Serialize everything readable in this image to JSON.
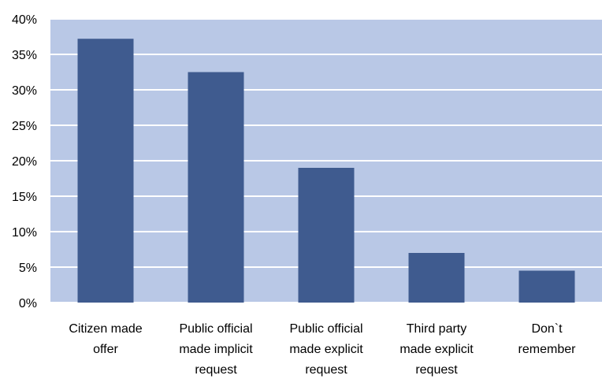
{
  "chart_data": {
    "type": "bar",
    "categories": [
      [
        "Citizen made",
        "offer"
      ],
      [
        "Public official",
        "made implicit",
        "request"
      ],
      [
        "Public official",
        "made explicit",
        "request"
      ],
      [
        "Third party",
        "made explicit",
        "request"
      ],
      [
        "Don`t",
        "remember"
      ]
    ],
    "values": [
      37.2,
      32.5,
      19.0,
      7.0,
      4.5
    ],
    "ylim": [
      0,
      40
    ],
    "yticks": [
      0,
      5,
      10,
      15,
      20,
      25,
      30,
      35,
      40
    ],
    "ytick_labels": [
      "0%",
      "5%",
      "10%",
      "15%",
      "20%",
      "25%",
      "30%",
      "35%",
      "40%"
    ],
    "grid": true,
    "colors": {
      "plot_background": "#b9c8e6",
      "bar": "#3f5b8f",
      "gridline": "#ffffff"
    }
  }
}
